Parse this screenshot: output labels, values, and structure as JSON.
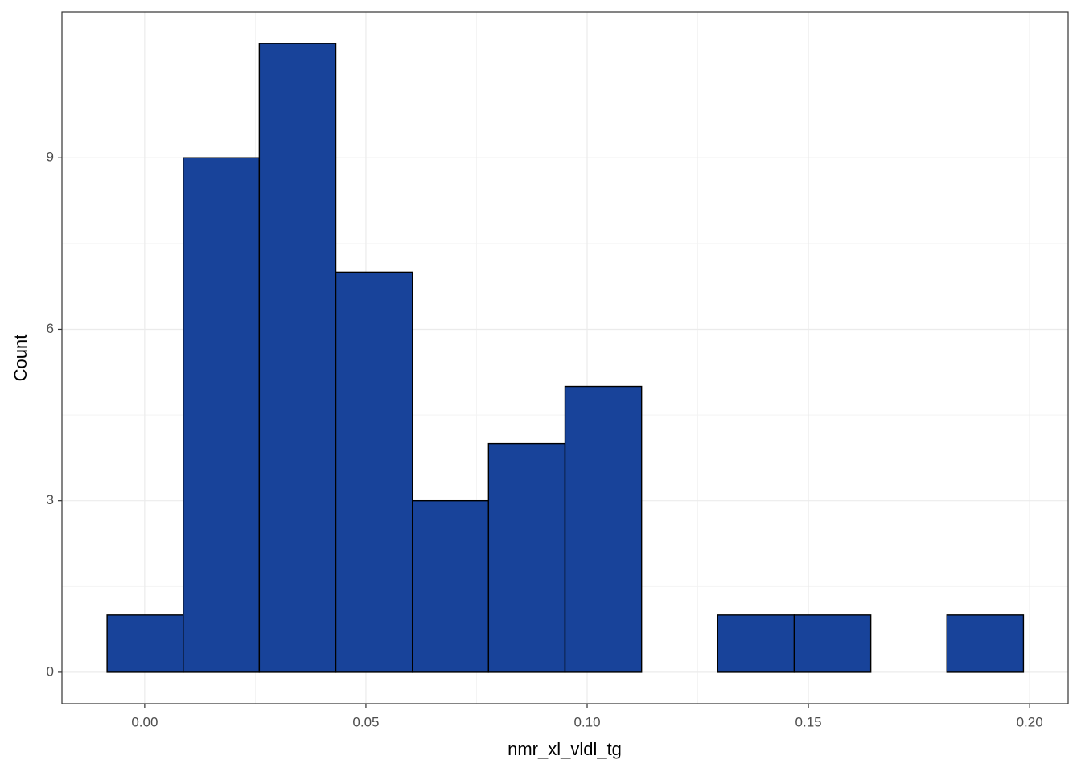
{
  "chart_data": {
    "type": "histogram",
    "x_label": "nmr_xl_vldl_tg",
    "y_label": "Count",
    "bins": [
      -0.0085,
      0.0087,
      0.0259,
      0.0432,
      0.0605,
      0.0777,
      0.095,
      0.1123,
      0.1295,
      0.1468,
      0.1641,
      0.1813,
      0.1986
    ],
    "values": [
      1,
      9,
      11,
      7,
      3,
      4,
      5,
      0,
      1,
      1,
      0,
      1
    ],
    "color": "#18439a",
    "edge_color": "#000000",
    "xlim": [
      -0.0187,
      0.2087
    ],
    "ylim": [
      -0.55,
      11.55
    ],
    "xticks": [
      {
        "value": 0,
        "label": "0.00"
      },
      0.05,
      {
        "value": 0.1,
        "label": "0.10"
      },
      0.15,
      {
        "value": 0.2,
        "label": "0.20"
      }
    ],
    "yticks": [
      0,
      3,
      6,
      9
    ],
    "grid": true
  }
}
